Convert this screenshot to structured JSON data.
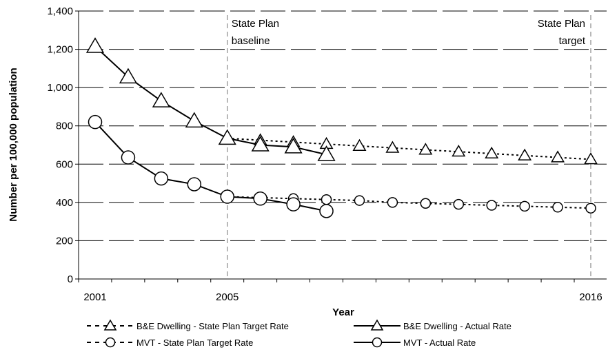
{
  "chart_data": {
    "type": "line",
    "title": "",
    "xlabel": "Year",
    "ylabel": "Number per 100,000 population",
    "xlim": [
      2001,
      2016
    ],
    "ylim": [
      0,
      1400
    ],
    "yticks": [
      0,
      200,
      400,
      600,
      800,
      1000,
      1200,
      1400
    ],
    "ytick_labels": [
      "0",
      "200",
      "400",
      "600",
      "800",
      "1,000",
      "1,200",
      "1,400"
    ],
    "xtick_labels": [
      {
        "x": 2001,
        "label": "2001"
      },
      {
        "x": 2005,
        "label": "2005"
      },
      {
        "x": 2016,
        "label": "2016"
      }
    ],
    "grid": "horizontal dashed",
    "legend_placement": "bottom",
    "annotations": [
      {
        "x": 2005,
        "lines": [
          "State Plan",
          "baseline"
        ]
      },
      {
        "x": 2016,
        "lines": [
          "State Plan",
          "target"
        ]
      }
    ],
    "series": [
      {
        "name": "B&E Dwelling - State Plan Target Rate",
        "marker": "triangle",
        "line": "dotted",
        "x": [
          2005,
          2006,
          2007,
          2008,
          2009,
          2010,
          2011,
          2012,
          2013,
          2014,
          2015,
          2016
        ],
        "y": [
          735,
          725,
          715,
          705,
          695,
          685,
          675,
          665,
          655,
          645,
          635,
          625
        ]
      },
      {
        "name": "B&E Dwelling - Actual Rate",
        "marker": "triangle",
        "line": "solid",
        "x": [
          2001,
          2002,
          2003,
          2004,
          2005,
          2006,
          2007,
          2008
        ],
        "y": [
          1215,
          1055,
          930,
          825,
          735,
          700,
          690,
          650
        ]
      },
      {
        "name": "MVT - State Plan Target Rate",
        "marker": "circle",
        "line": "dotted",
        "x": [
          2005,
          2006,
          2007,
          2008,
          2009,
          2010,
          2011,
          2012,
          2013,
          2014,
          2015,
          2016
        ],
        "y": [
          430,
          425,
          420,
          415,
          410,
          400,
          395,
          390,
          385,
          380,
          375,
          370
        ]
      },
      {
        "name": "MVT - Actual Rate",
        "marker": "circle",
        "line": "solid",
        "x": [
          2001,
          2002,
          2003,
          2004,
          2005,
          2006,
          2007,
          2008
        ],
        "y": [
          820,
          635,
          525,
          495,
          430,
          420,
          390,
          355
        ]
      }
    ]
  }
}
